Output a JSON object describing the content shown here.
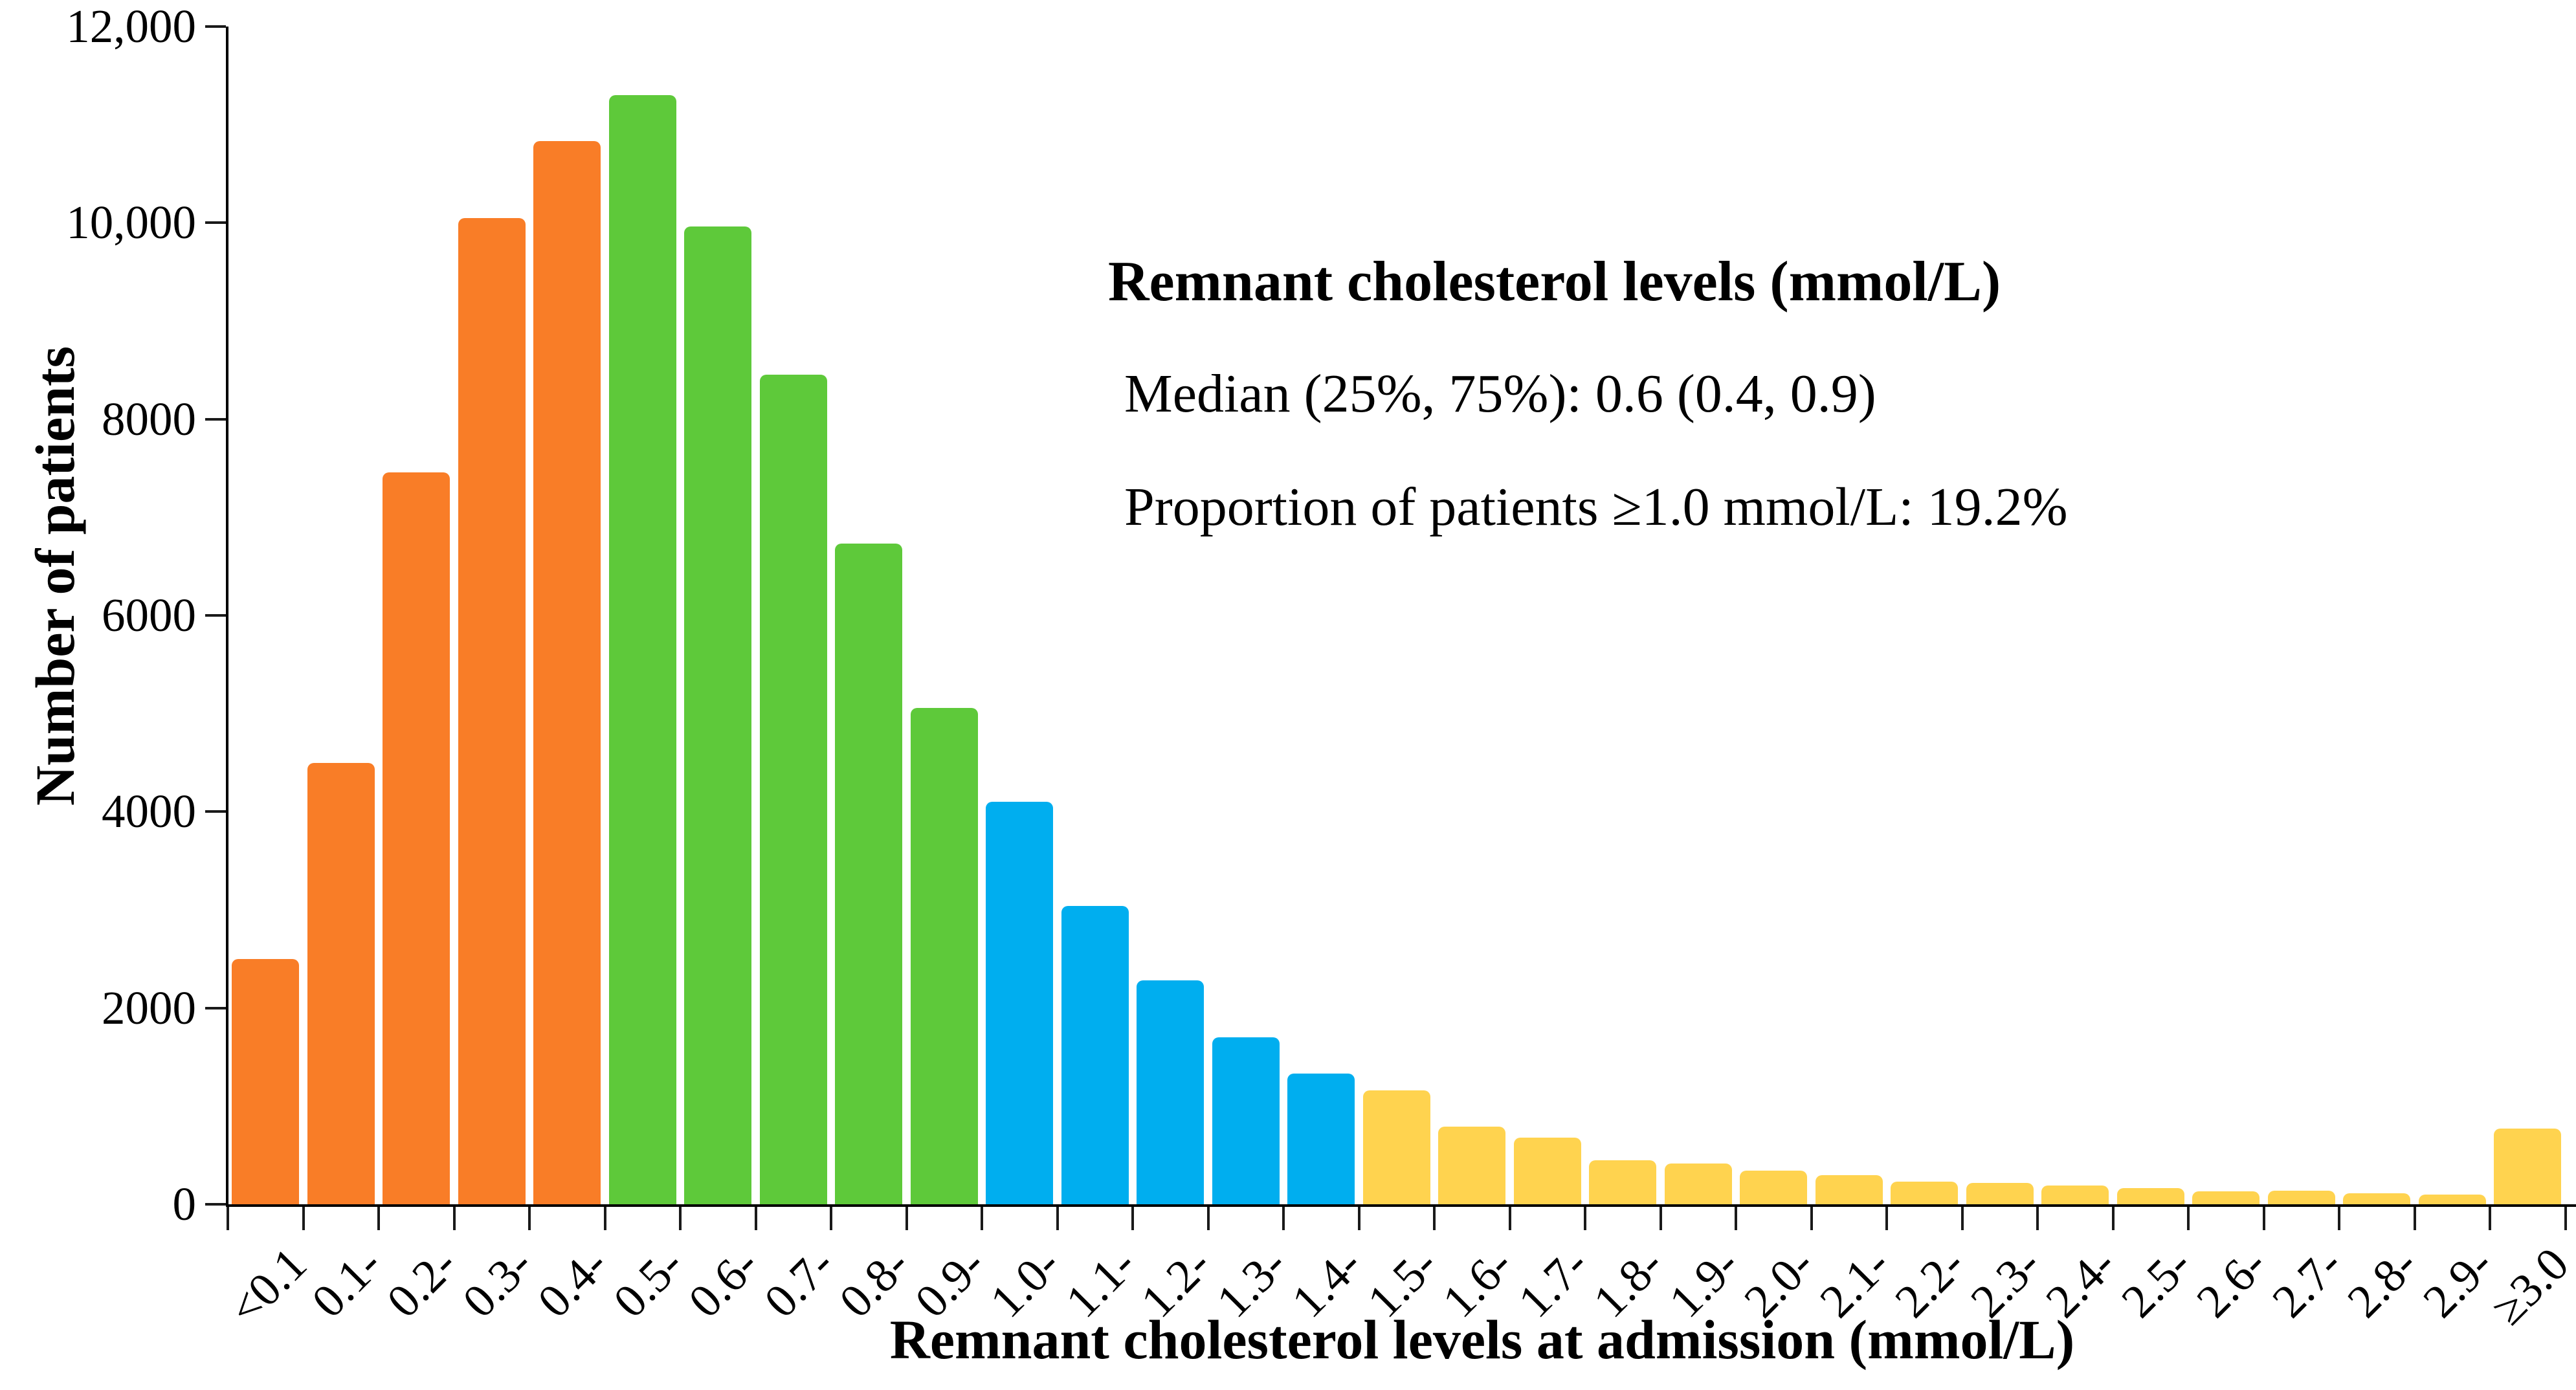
{
  "figure": {
    "background": "#FFFFFF",
    "y_axis": {
      "title": "Number of patients",
      "tick_values": [
        0,
        2000,
        4000,
        6000,
        8000,
        10000,
        12000
      ],
      "tick_labels": [
        "0",
        "2000",
        "4000",
        "6000",
        "8000",
        "10,000",
        "12,000"
      ]
    },
    "x_axis": {
      "title": "Remnant cholesterol levels at admission (mmol/L)"
    },
    "annotation": {
      "title": "Remnant cholesterol levels (mmol/L)",
      "line1": "Median (25%, 75%): 0.6 (0.4, 0.9)",
      "line2": "Proportion of patients ≥1.0 mmol/L: 19.2%"
    }
  },
  "chart_data": {
    "type": "bar",
    "title": "",
    "xlabel": "Remnant cholesterol levels at admission (mmol/L)",
    "ylabel": "Number of patients",
    "ylim": [
      0,
      12000
    ],
    "grid": false,
    "legend": false,
    "categories": [
      "<0.1",
      "0.1-",
      "0.2-",
      "0.3-",
      "0.4-",
      "0.5-",
      "0.6-",
      "0.7-",
      "0.8-",
      "0.9-",
      "1.0-",
      "1.1-",
      "1.2-",
      "1.3-",
      "1.4-",
      "1.5-",
      "1.6-",
      "1.7-",
      "1.8-",
      "1.9-",
      "2.0-",
      "2.1-",
      "2.2-",
      "2.3-",
      "2.4-",
      "2.5-",
      "2.6-",
      "2.7-",
      "2.8-",
      "2.9-",
      "≥3.0"
    ],
    "values": [
      2500,
      4500,
      7460,
      10050,
      10830,
      11300,
      9960,
      8450,
      6730,
      5060,
      4100,
      3040,
      2280,
      1700,
      1330,
      1160,
      790,
      680,
      450,
      415,
      345,
      300,
      230,
      215,
      190,
      165,
      135,
      140,
      115,
      100,
      770
    ],
    "color_groups": [
      {
        "name": "orange",
        "hex": "#F97D27",
        "from": 0,
        "to": 4
      },
      {
        "name": "green",
        "hex": "#5EC93A",
        "from": 5,
        "to": 9
      },
      {
        "name": "blue",
        "hex": "#00AEEF",
        "from": 10,
        "to": 14
      },
      {
        "name": "yellow",
        "hex": "#FFD34F",
        "from": 15,
        "to": 30
      }
    ]
  }
}
